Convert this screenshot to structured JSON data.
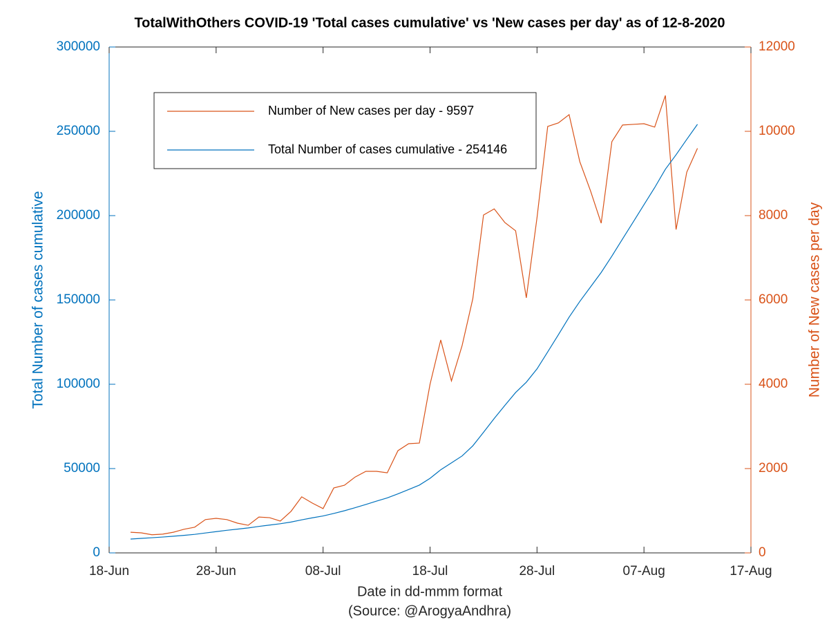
{
  "chart_data": {
    "type": "line",
    "title": "TotalWithOthers COVID-19 'Total cases cumulative' vs 'New cases per day' as of 12-8-2020",
    "xlabel": "Date in dd-mmm format",
    "source": "(Source: @ArogyaAndhra)",
    "ylabel": "Total Number of cases cumulative",
    "y2label": "Number of New cases per day",
    "x": [
      "20-Jun",
      "21-Jun",
      "22-Jun",
      "23-Jun",
      "24-Jun",
      "25-Jun",
      "26-Jun",
      "27-Jun",
      "28-Jun",
      "29-Jun",
      "30-Jun",
      "01-Jul",
      "02-Jul",
      "03-Jul",
      "04-Jul",
      "05-Jul",
      "06-Jul",
      "07-Jul",
      "08-Jul",
      "09-Jul",
      "10-Jul",
      "11-Jul",
      "12-Jul",
      "13-Jul",
      "14-Jul",
      "15-Jul",
      "16-Jul",
      "17-Jul",
      "18-Jul",
      "19-Jul",
      "20-Jul",
      "21-Jul",
      "22-Jul",
      "23-Jul",
      "24-Jul",
      "25-Jul",
      "26-Jul",
      "27-Jul",
      "28-Jul",
      "29-Jul",
      "30-Jul",
      "31-Jul",
      "01-Aug",
      "02-Aug",
      "03-Aug",
      "04-Aug",
      "05-Aug",
      "06-Aug",
      "07-Aug",
      "08-Aug",
      "09-Aug",
      "10-Aug",
      "11-Aug",
      "12-Aug"
    ],
    "series": [
      {
        "name": "Number of New cases per day - 9597",
        "color": "#d95319",
        "axis": "y2",
        "values": [
          490,
          475,
          430,
          445,
          490,
          560,
          610,
          790,
          820,
          790,
          705,
          655,
          850,
          835,
          755,
          985,
          1330,
          1180,
          1050,
          1540,
          1605,
          1800,
          1935,
          1935,
          1900,
          2425,
          2590,
          2605,
          4000,
          5050,
          4080,
          4920,
          6030,
          8015,
          8160,
          7835,
          7640,
          6050,
          7950,
          10115,
          10200,
          10395,
          9280,
          8590,
          7820,
          9755,
          10150,
          10165,
          10180,
          10100,
          10850,
          7670,
          9030,
          9597
        ]
      },
      {
        "name": "Total Number of cases cumulative - 254146",
        "color": "#0072bd",
        "axis": "y",
        "values": [
          8200,
          8600,
          9000,
          9400,
          9900,
          10400,
          11000,
          11800,
          12600,
          13400,
          14100,
          14800,
          15700,
          16500,
          17300,
          18300,
          19600,
          20800,
          21900,
          23400,
          25000,
          26800,
          28700,
          30700,
          32600,
          35000,
          37600,
          40200,
          44200,
          49300,
          53400,
          57500,
          63500,
          71500,
          79700,
          87500,
          95100,
          101200,
          109100,
          119200,
          129400,
          139800,
          149100,
          157700,
          166300,
          176000,
          186200,
          196300,
          206500,
          216600,
          227500,
          236100,
          245200,
          254146
        ]
      }
    ],
    "xlim": [
      "18-Jun",
      "17-Aug"
    ],
    "xticks": [
      "18-Jun",
      "28-Jun",
      "08-Jul",
      "18-Jul",
      "28-Jul",
      "07-Aug",
      "17-Aug"
    ],
    "ylim": [
      0,
      300000
    ],
    "yticks": [
      0,
      50000,
      100000,
      150000,
      200000,
      250000,
      300000
    ],
    "y2lim": [
      0,
      12000
    ],
    "y2ticks": [
      0,
      2000,
      4000,
      6000,
      8000,
      10000,
      12000
    ],
    "legend": "upper left"
  }
}
